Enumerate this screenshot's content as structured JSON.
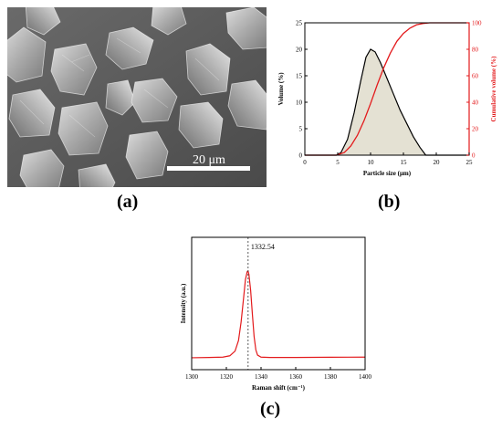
{
  "figure": {
    "panel_labels": {
      "a": "(a)",
      "b": "(b)",
      "c": "(c)"
    },
    "sem": {
      "scale_bar_label": "20 μm"
    }
  },
  "colors": {
    "pdf_line": "#000000",
    "pdf_fill": "#e4e1d3",
    "cumulative_line": "#e31a1c",
    "raman_line": "#e31a1c"
  },
  "chart_data": [
    {
      "type": "area",
      "xlabel": "Particle size (μm)",
      "ylabel": "Volume (%)",
      "y2label": "Cumulative volume (%)",
      "xlim": [
        0,
        25
      ],
      "ylim": [
        0,
        25
      ],
      "y2lim": [
        0,
        100
      ],
      "xticks": [
        0,
        5,
        10,
        15,
        20,
        25
      ],
      "yticks": [
        0,
        5,
        10,
        15,
        20,
        25
      ],
      "y2ticks": [
        0,
        20,
        40,
        60,
        80,
        100
      ],
      "grid": false,
      "series": [
        {
          "axis": "left",
          "x": [
            0,
            4.8,
            5.5,
            6.5,
            7.5,
            8.5,
            9.3,
            10.0,
            10.7,
            11.5,
            12.5,
            13.5,
            14.5,
            15.5,
            16.5,
            17.5,
            18.4,
            19,
            25
          ],
          "y": [
            0,
            0,
            0.5,
            3,
            8,
            14,
            18.5,
            20,
            19.5,
            17.5,
            14.5,
            11.5,
            8.5,
            6,
            3.5,
            1.5,
            0,
            0,
            0
          ]
        },
        {
          "axis": "right",
          "x": [
            0,
            4.8,
            6,
            7,
            8,
            9,
            10,
            11,
            12,
            13,
            14,
            15,
            16,
            17,
            18,
            19,
            20,
            25
          ],
          "y": [
            0,
            0,
            2,
            7,
            15,
            26,
            39,
            53,
            66,
            77,
            86,
            92,
            96,
            98.5,
            99.5,
            100,
            100,
            100
          ]
        }
      ]
    },
    {
      "type": "line",
      "xlabel": "Raman shift (cm⁻¹)",
      "ylabel": "Intensity (a.u.)",
      "xlim": [
        1300,
        1400
      ],
      "ylim": [
        0,
        1
      ],
      "xticks": [
        1300,
        1320,
        1340,
        1360,
        1380,
        1400
      ],
      "grid": false,
      "annotation": {
        "label": "1332.54",
        "x": 1332.54
      },
      "series": [
        {
          "x": [
            1300,
            1310,
            1318,
            1322,
            1325,
            1327,
            1328.5,
            1330,
            1331,
            1332,
            1332.5,
            1333,
            1334,
            1335,
            1336,
            1337,
            1338,
            1340,
            1345,
            1360,
            1380,
            1400
          ],
          "y": [
            0.09,
            0.092,
            0.095,
            0.105,
            0.14,
            0.22,
            0.36,
            0.55,
            0.68,
            0.74,
            0.745,
            0.72,
            0.6,
            0.42,
            0.25,
            0.15,
            0.11,
            0.095,
            0.092,
            0.092,
            0.094,
            0.095
          ]
        }
      ]
    }
  ]
}
